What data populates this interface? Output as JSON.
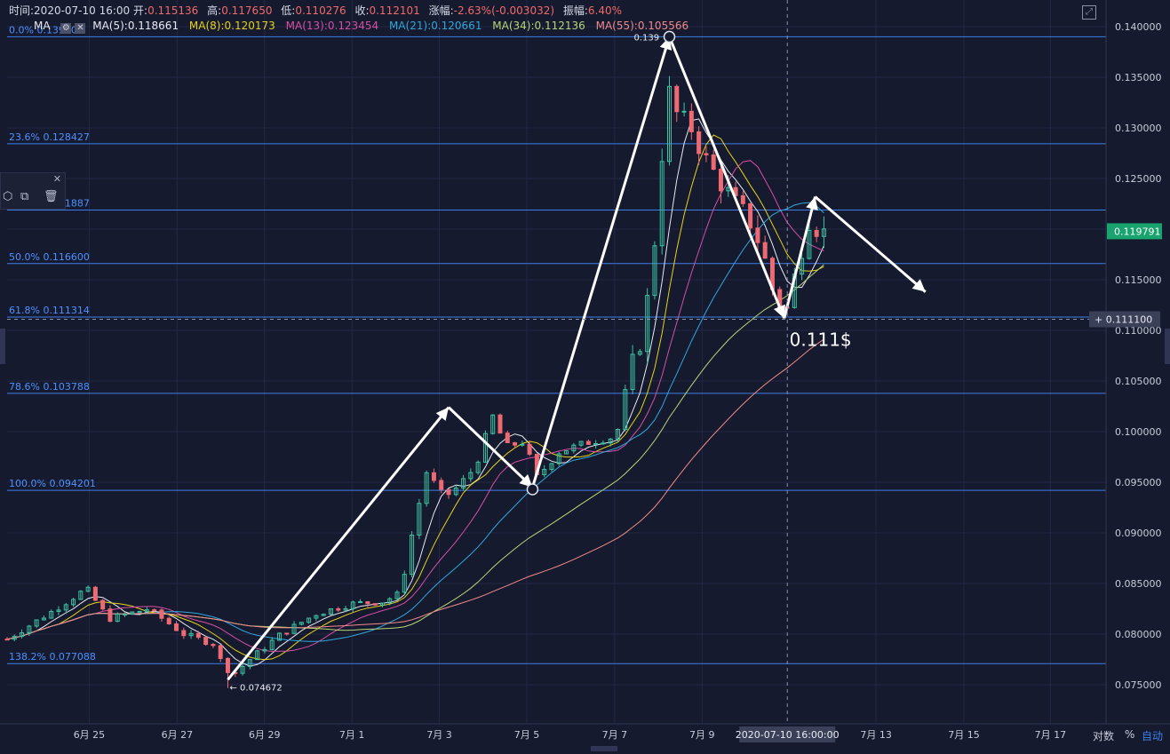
{
  "header": {
    "time_label": "时间:",
    "time_value": "2020-07-10 16:00",
    "open_label": "开:",
    "open_value": "0.115136",
    "high_label": "高:",
    "high_value": "0.117650",
    "low_label": "低:",
    "low_value": "0.110276",
    "close_label": "收:",
    "close_value": "0.112101",
    "change_label": "涨幅:",
    "change_value": "-2.63%(-0.003032)",
    "amp_label": "振幅:",
    "amp_value": "6.40%"
  },
  "ma_legend": {
    "title": "MA",
    "items": [
      {
        "text": "MA(5):0.118661",
        "color": "#e8eaf2"
      },
      {
        "text": "MA(8):0.120173",
        "color": "#e6d21a"
      },
      {
        "text": "MA(13):0.123454",
        "color": "#d64fa6"
      },
      {
        "text": "MA(21):0.120661",
        "color": "#2ea8dc"
      },
      {
        "text": "MA(34):0.112136",
        "color": "#b7d67a"
      },
      {
        "text": "MA(55):0.105566",
        "color": "#f08a8a"
      }
    ]
  },
  "toolbox": {
    "close_icon": "close-icon",
    "icons": [
      "hexagon-icon",
      "copy-icon",
      "trash-icon"
    ]
  },
  "colors": {
    "background": "#161a2e",
    "grid": "#232844",
    "fib_line": "#3d7fe8",
    "fib_text": "#4d92ff",
    "up": "#3cc3a3",
    "down": "#ee6a73",
    "axis_text": "#c8ccd8",
    "price_tag_bg": "#19a36e"
  },
  "chart_data": {
    "type": "candlestick",
    "title": "",
    "y_range": [
      0.0725,
      0.1415
    ],
    "y_ticks": [
      "0.140000",
      "0.135000",
      "0.130000",
      "0.125000",
      "0.120000",
      "0.115000",
      "0.110000",
      "0.105000",
      "0.100000",
      "0.095000",
      "0.090000",
      "0.085000",
      "0.080000",
      "0.075000"
    ],
    "y_tick_values": [
      0.14,
      0.135,
      0.13,
      0.125,
      0.12,
      0.115,
      0.11,
      0.105,
      0.1,
      0.095,
      0.09,
      0.085,
      0.08,
      0.075
    ],
    "x_labels": [
      {
        "text": "6月 25",
        "day": 24.86
      },
      {
        "text": "6月 27",
        "day": 26.85
      },
      {
        "text": "6月 29",
        "day": 28.83
      },
      {
        "text": "7月 1",
        "day": 30.81
      },
      {
        "text": "7月 3",
        "day": 32.79
      },
      {
        "text": "7月 5",
        "day": 34.77
      },
      {
        "text": "7月 7",
        "day": 36.76
      },
      {
        "text": "7月 9",
        "day": 38.74
      },
      {
        "text": "7月 13",
        "day": 42.68
      },
      {
        "text": "7月 15",
        "day": 44.67
      },
      {
        "text": "7月 17",
        "day": 46.63
      }
    ],
    "x_range_days": [
      23.0,
      47.2
    ],
    "crosshair": {
      "time_label": "2020-07-10 16:00:00",
      "day": 40.67,
      "price": 0.1111,
      "price_label": "0.111100"
    },
    "last_price": {
      "value": 0.119791,
      "label": "0.119791"
    },
    "fib_levels": [
      {
        "label": "0.0% 0.139000",
        "value": 0.139
      },
      {
        "label": "23.6% 0.128427",
        "value": 0.128427
      },
      {
        "label": "38.2% 0.121887",
        "value": 0.121887
      },
      {
        "label": "50.0% 0.116600",
        "value": 0.1166
      },
      {
        "label": "61.8% 0.111314",
        "value": 0.111314
      },
      {
        "label": "78.6% 0.103788",
        "value": 0.103788
      },
      {
        "label": "100.0% 0.094201",
        "value": 0.094201
      },
      {
        "label": "138.2% 0.077088",
        "value": 0.077088
      }
    ],
    "annotations": [
      {
        "text": "0.139",
        "day": 38.0,
        "value": 0.139
      },
      {
        "text": "← 0.074672",
        "day": 28.0,
        "value": 0.074672
      },
      {
        "text": "0.111$",
        "day": 40.8,
        "value": 0.1111
      }
    ],
    "zigzag": [
      {
        "day": 28.0,
        "value": 0.0755
      },
      {
        "day": 33.0,
        "value": 0.1024
      },
      {
        "day": 34.9,
        "value": 0.0945
      },
      {
        "day": 38.0,
        "value": 0.139
      },
      {
        "day": 40.6,
        "value": 0.1112
      },
      {
        "day": 41.3,
        "value": 0.1232
      },
      {
        "day": 43.8,
        "value": 0.1138
      }
    ],
    "circles": [
      {
        "day": 34.9,
        "value": 0.0943
      },
      {
        "day": 38.0,
        "value": 0.139
      }
    ],
    "ohlc_seed": [
      {
        "day": 23.0,
        "close": 0.0795
      },
      {
        "day": 24.0,
        "close": 0.0822
      },
      {
        "day": 24.8,
        "close": 0.0845
      },
      {
        "day": 25.3,
        "close": 0.0815
      },
      {
        "day": 26.2,
        "close": 0.0825
      },
      {
        "day": 27.0,
        "close": 0.08
      },
      {
        "day": 27.7,
        "close": 0.079
      },
      {
        "day": 28.0,
        "close": 0.0755
      },
      {
        "day": 28.5,
        "close": 0.0775
      },
      {
        "day": 29.2,
        "close": 0.08
      },
      {
        "day": 30.0,
        "close": 0.082
      },
      {
        "day": 30.8,
        "close": 0.083
      },
      {
        "day": 31.5,
        "close": 0.0832
      },
      {
        "day": 31.9,
        "close": 0.084
      },
      {
        "day": 32.2,
        "close": 0.0905
      },
      {
        "day": 32.5,
        "close": 0.096
      },
      {
        "day": 32.9,
        "close": 0.0935
      },
      {
        "day": 33.2,
        "close": 0.0945
      },
      {
        "day": 33.6,
        "close": 0.0965
      },
      {
        "day": 34.0,
        "close": 0.1015
      },
      {
        "day": 34.3,
        "close": 0.0985
      },
      {
        "day": 34.7,
        "close": 0.099
      },
      {
        "day": 35.0,
        "close": 0.0955
      },
      {
        "day": 35.5,
        "close": 0.098
      },
      {
        "day": 36.2,
        "close": 0.099
      },
      {
        "day": 36.8,
        "close": 0.0995
      },
      {
        "day": 37.1,
        "close": 0.106
      },
      {
        "day": 37.4,
        "close": 0.1095
      },
      {
        "day": 37.7,
        "close": 0.12
      },
      {
        "day": 37.95,
        "close": 0.134
      },
      {
        "day": 38.2,
        "close": 0.131
      },
      {
        "day": 38.5,
        "close": 0.13
      },
      {
        "day": 38.8,
        "close": 0.127
      },
      {
        "day": 39.1,
        "close": 0.125
      },
      {
        "day": 39.5,
        "close": 0.1225
      },
      {
        "day": 39.8,
        "close": 0.121
      },
      {
        "day": 40.1,
        "close": 0.118
      },
      {
        "day": 40.4,
        "close": 0.113
      },
      {
        "day": 40.67,
        "close": 0.1121
      },
      {
        "day": 40.9,
        "close": 0.1165
      },
      {
        "day": 41.2,
        "close": 0.1215
      },
      {
        "day": 41.4,
        "close": 0.1195
      },
      {
        "day": 41.6,
        "close": 0.1198
      }
    ]
  },
  "footer": {
    "log_label": "对数",
    "pct_label": "%",
    "auto_label": "自动"
  }
}
